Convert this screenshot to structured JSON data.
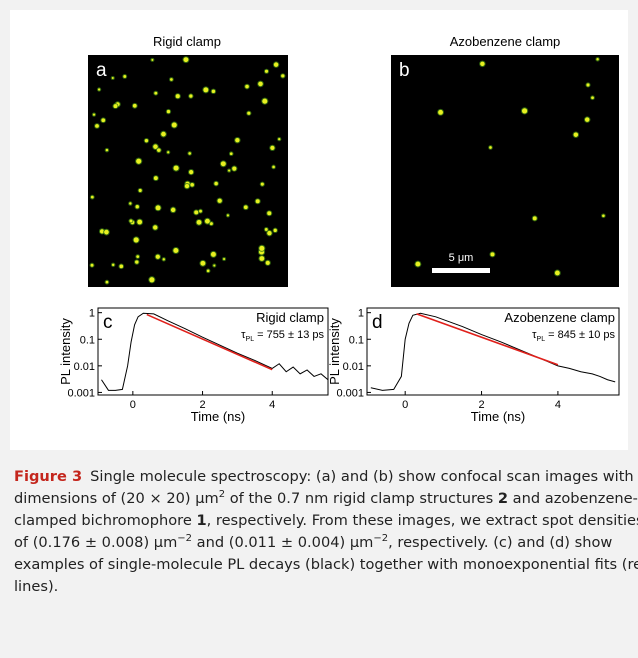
{
  "figure": {
    "panels": [
      {
        "title": "Rigid clamp",
        "label": "a"
      },
      {
        "title": "Azobenzene clamp",
        "label": "b",
        "scale_bar": "5 μm"
      }
    ]
  },
  "chart_data": [
    {
      "type": "line",
      "label": "c",
      "xlabel": "Time (ns)",
      "ylabel": "PL intensity",
      "yscale": "log",
      "annotation": "Rigid clamp",
      "tau_symbol": "τ",
      "tau_subscript": "PL",
      "tau_value": "= 755 ± 13 ps",
      "xlim": [
        -1,
        5.6
      ],
      "xticks": [
        0,
        2,
        4
      ],
      "ylim": [
        0.0008,
        1.5
      ],
      "yticks": [
        0.001,
        0.01,
        0.1,
        1
      ],
      "series": [
        {
          "color": "#000000",
          "x": [
            -0.9,
            -0.7,
            -0.5,
            -0.3,
            -0.15,
            -0.05,
            0.05,
            0.15,
            0.3,
            0.6,
            1,
            1.5,
            2,
            2.5,
            3,
            3.5,
            4,
            4.2,
            4.4,
            4.6,
            4.8,
            5,
            5.2,
            5.4,
            5.6
          ],
          "values": [
            0.003,
            0.0012,
            0.0012,
            0.0013,
            0.01,
            0.08,
            0.35,
            0.7,
            0.95,
            0.9,
            0.5,
            0.25,
            0.12,
            0.06,
            0.03,
            0.016,
            0.008,
            0.012,
            0.006,
            0.009,
            0.005,
            0.007,
            0.004,
            0.005,
            0.003
          ]
        },
        {
          "color": "#e0201b",
          "x": [
            0.4,
            4
          ],
          "values": [
            0.85,
            0.0072
          ]
        }
      ]
    },
    {
      "type": "line",
      "label": "d",
      "xlabel": "Time (ns)",
      "ylabel": "PL intensity",
      "yscale": "log",
      "annotation": "Azobenzene clamp",
      "tau_symbol": "τ",
      "tau_subscript": "PL",
      "tau_value": "= 845 ± 10 ps",
      "xlim": [
        -1,
        5.6
      ],
      "xticks": [
        0,
        2,
        4
      ],
      "ylim": [
        0.0008,
        1.5
      ],
      "yticks": [
        0.001,
        0.01,
        0.1,
        1
      ],
      "series": [
        {
          "color": "#000000",
          "x": [
            -0.9,
            -0.6,
            -0.3,
            -0.1,
            0,
            0.1,
            0.2,
            0.4,
            0.8,
            1.5,
            2,
            2.5,
            3,
            3.5,
            4,
            4.3,
            4.6,
            4.9,
            5.1,
            5.3,
            5.5
          ],
          "values": [
            0.0015,
            0.0012,
            0.0013,
            0.004,
            0.1,
            0.4,
            0.8,
            0.95,
            0.7,
            0.3,
            0.15,
            0.08,
            0.04,
            0.02,
            0.01,
            0.008,
            0.006,
            0.005,
            0.004,
            0.003,
            0.0025
          ]
        },
        {
          "color": "#e0201b",
          "x": [
            0.3,
            4
          ],
          "values": [
            0.9,
            0.011
          ]
        }
      ]
    }
  ],
  "caption": {
    "label": "Figure 3",
    "parts": [
      "Single molecule spectroscopy: (a) and (b) show confocal scan images with dimensions of (20 × 20) μm",
      "2",
      " of the 0.7 nm rigid clamp structures ",
      "2",
      " and azobenzene-clamped bichromophore ",
      "1",
      ", respectively. From these images, we extract spot densities of (0.176 ± 0.008) μm",
      "−2",
      " and (0.011 ± 0.004) μm",
      "−2",
      ", respectively. (c) and (d) show examples of single-molecule PL decays (black) together with monoexponential fits (red lines)."
    ]
  }
}
